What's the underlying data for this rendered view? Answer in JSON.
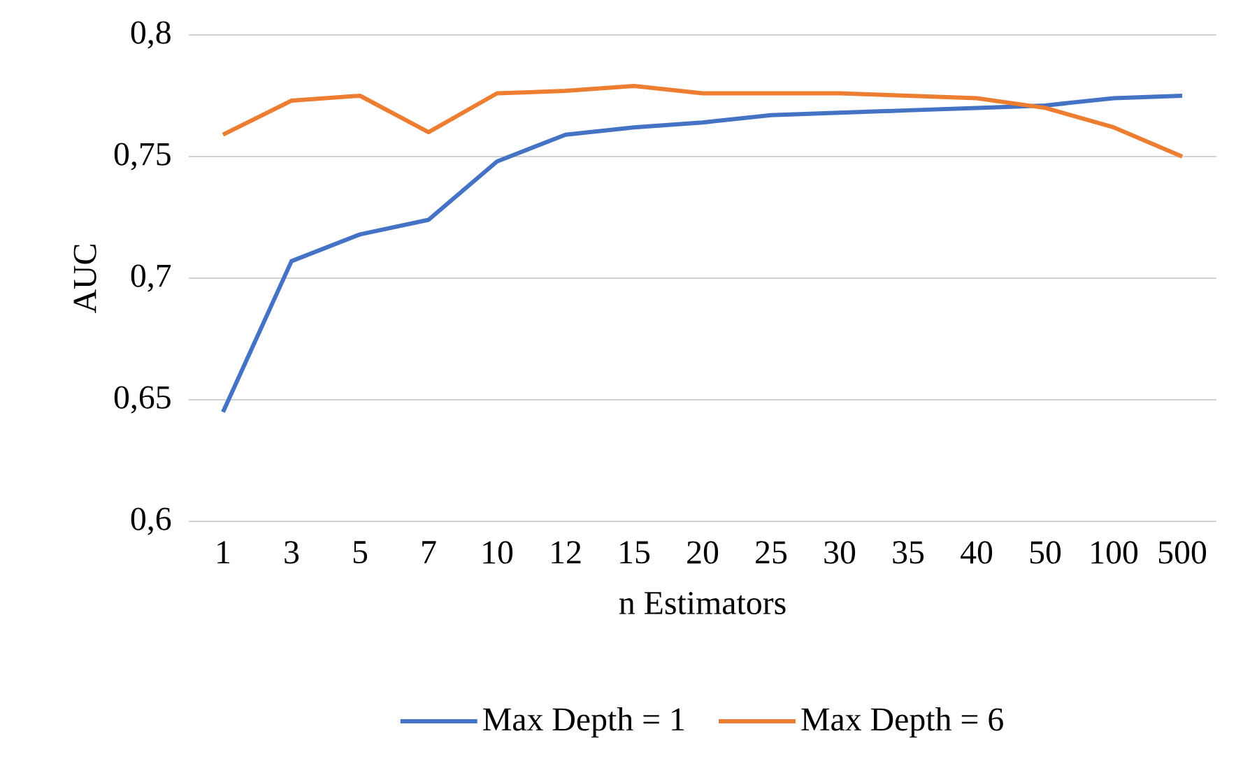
{
  "chart_data": {
    "type": "line",
    "xlabel": "n Estimators",
    "ylabel": "AUC",
    "categories": [
      "1",
      "3",
      "5",
      "7",
      "10",
      "12",
      "15",
      "20",
      "25",
      "30",
      "35",
      "40",
      "50",
      "100",
      "500"
    ],
    "series": [
      {
        "name": "Max Depth = 1",
        "color": "#4472c4",
        "values": [
          0.645,
          0.707,
          0.718,
          0.724,
          0.748,
          0.759,
          0.762,
          0.764,
          0.767,
          0.768,
          0.769,
          0.77,
          0.771,
          0.774,
          0.775
        ]
      },
      {
        "name": "Max Depth = 6",
        "color": "#ed7d31",
        "values": [
          0.759,
          0.773,
          0.775,
          0.76,
          0.776,
          0.777,
          0.779,
          0.776,
          0.776,
          0.776,
          0.775,
          0.774,
          0.77,
          0.762,
          0.75
        ]
      }
    ],
    "ylim": [
      0.6,
      0.8
    ],
    "yticks": [
      {
        "value": 0.6,
        "label": "0,6"
      },
      {
        "value": 0.65,
        "label": "0,65"
      },
      {
        "value": 0.7,
        "label": "0,7"
      },
      {
        "value": 0.75,
        "label": "0,75"
      },
      {
        "value": 0.8,
        "label": "0,8"
      }
    ],
    "grid": "y",
    "legend": "bottom",
    "marker": "none",
    "line_style": "solid"
  }
}
